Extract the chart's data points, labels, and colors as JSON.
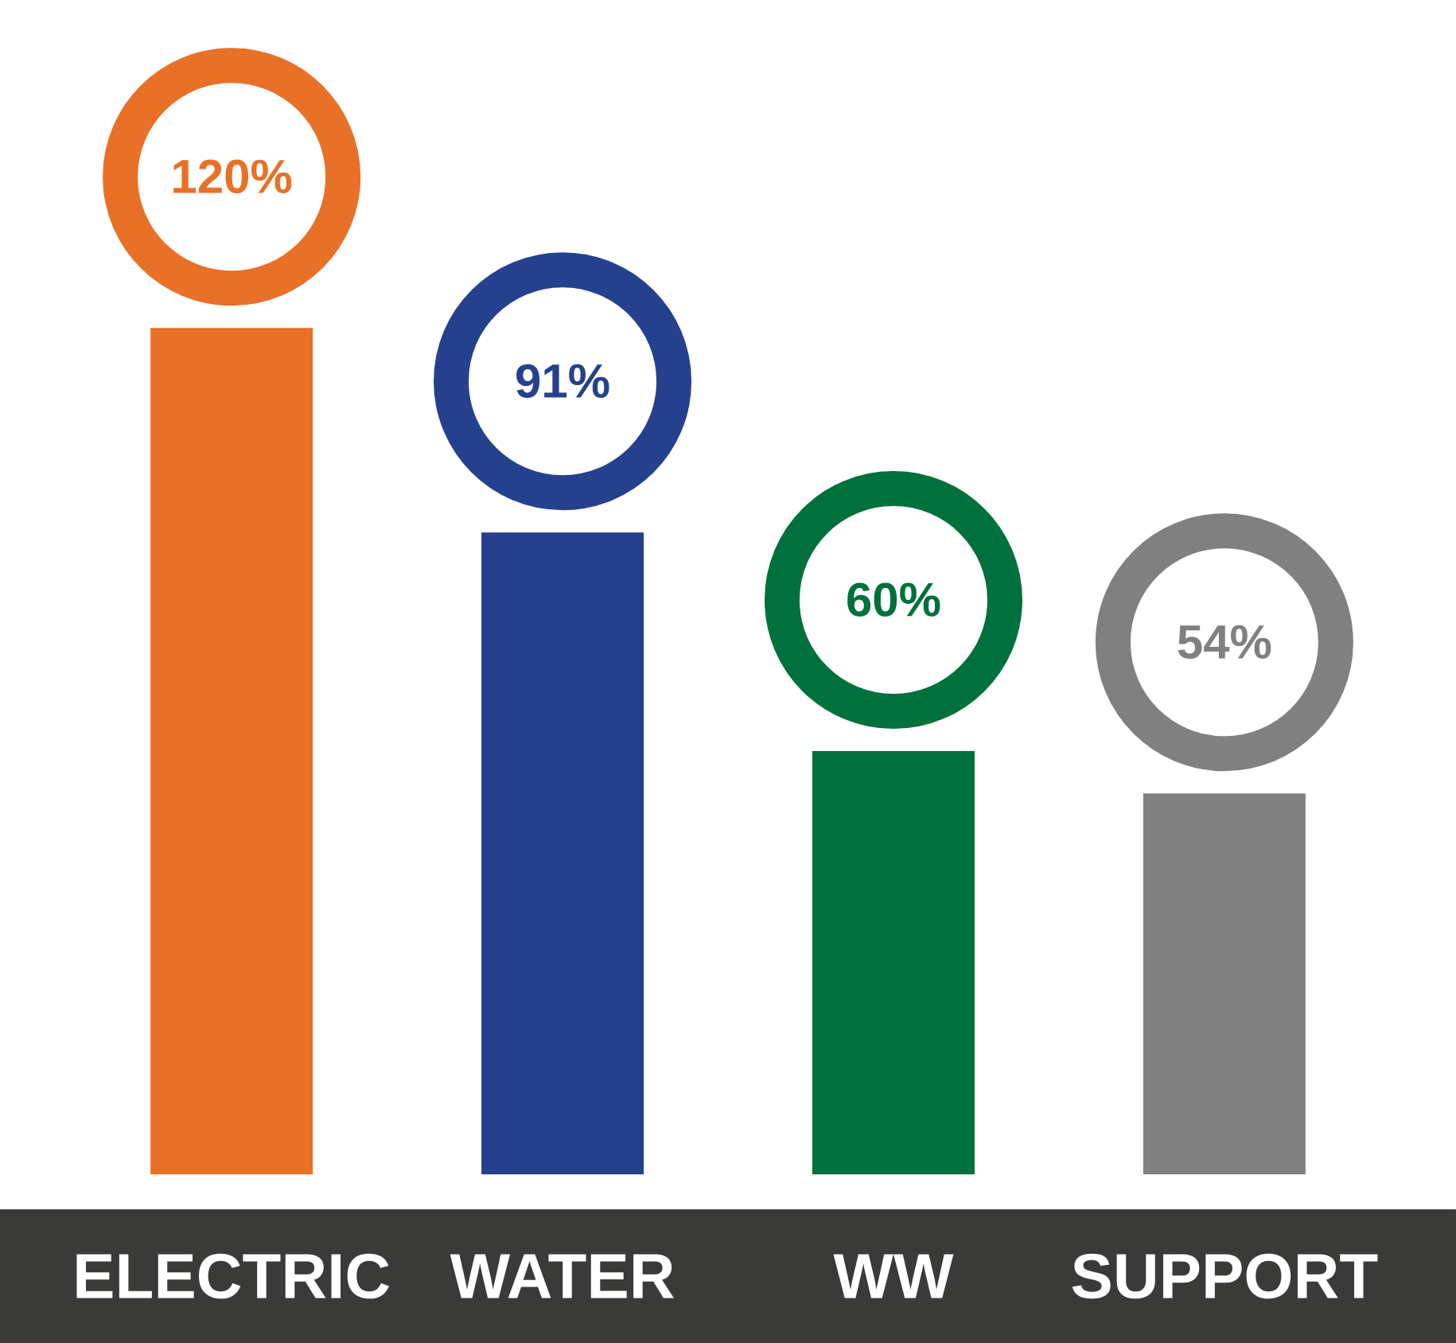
{
  "chart_data": {
    "type": "bar",
    "categories": [
      "ELECTRIC",
      "WATER",
      "WW",
      "SUPPORT"
    ],
    "values": [
      120,
      91,
      60,
      54
    ],
    "colors": [
      "#e97027",
      "#25418e",
      "#00703c",
      "#808080"
    ],
    "value_labels": [
      "120%",
      "91%",
      "60%",
      "54%"
    ]
  }
}
